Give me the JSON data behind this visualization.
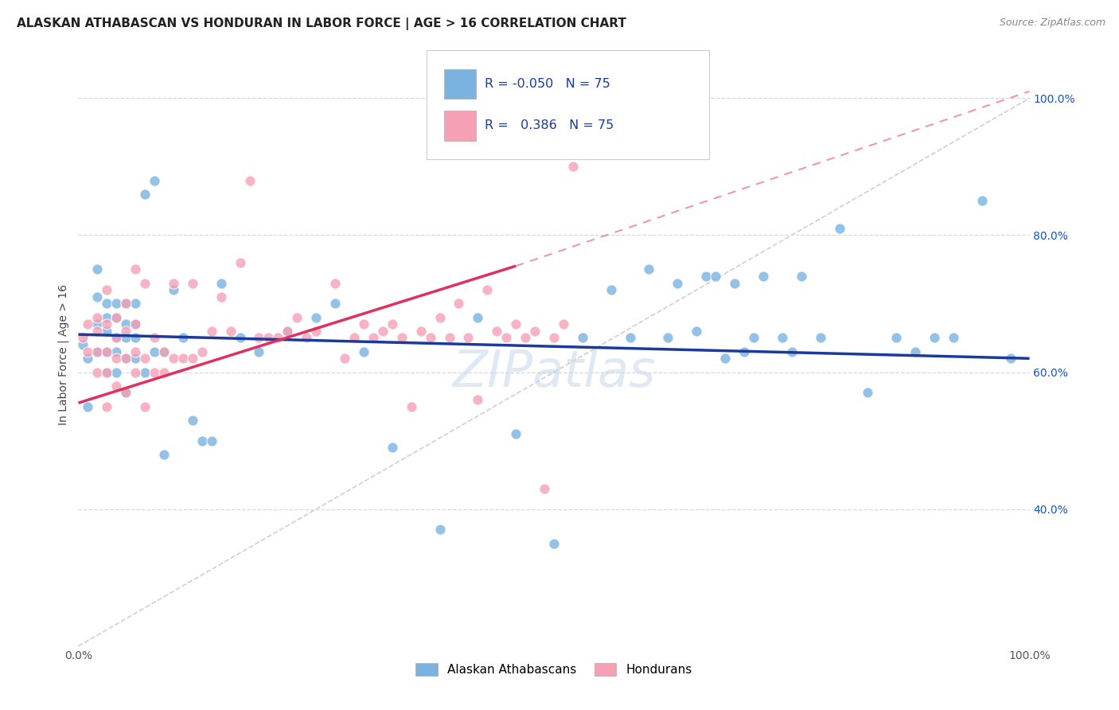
{
  "title": "ALASKAN ATHABASCAN VS HONDURAN IN LABOR FORCE | AGE > 16 CORRELATION CHART",
  "source": "Source: ZipAtlas.com",
  "ylabel": "In Labor Force | Age > 16",
  "xlim": [
    0.0,
    1.0
  ],
  "ylim": [
    0.2,
    1.05
  ],
  "blue_color": "#7ab3e0",
  "pink_color": "#f5a0b5",
  "blue_line_color": "#1a3a9c",
  "pink_line_color": "#e03060",
  "diag_line_color": "#d0d0d0",
  "grid_color": "#d8d8d8",
  "watermark_color": "#c5d8ec",
  "legend_r_blue": "-0.050",
  "legend_r_pink": "0.386",
  "legend_n": "75",
  "blue_x": [
    0.005,
    0.01,
    0.01,
    0.02,
    0.02,
    0.02,
    0.02,
    0.03,
    0.03,
    0.03,
    0.03,
    0.03,
    0.04,
    0.04,
    0.04,
    0.04,
    0.04,
    0.05,
    0.05,
    0.05,
    0.05,
    0.05,
    0.06,
    0.06,
    0.06,
    0.06,
    0.07,
    0.07,
    0.08,
    0.08,
    0.09,
    0.09,
    0.1,
    0.11,
    0.12,
    0.13,
    0.14,
    0.15,
    0.17,
    0.19,
    0.22,
    0.25,
    0.27,
    0.3,
    0.33,
    0.38,
    0.42,
    0.46,
    0.5,
    0.53,
    0.56,
    0.58,
    0.6,
    0.62,
    0.63,
    0.65,
    0.66,
    0.67,
    0.68,
    0.69,
    0.7,
    0.71,
    0.72,
    0.74,
    0.75,
    0.76,
    0.78,
    0.8,
    0.83,
    0.86,
    0.88,
    0.9,
    0.92,
    0.95,
    0.98
  ],
  "blue_y": [
    0.64,
    0.55,
    0.62,
    0.63,
    0.67,
    0.71,
    0.75,
    0.6,
    0.63,
    0.66,
    0.68,
    0.7,
    0.6,
    0.63,
    0.65,
    0.68,
    0.7,
    0.57,
    0.62,
    0.65,
    0.67,
    0.7,
    0.62,
    0.65,
    0.67,
    0.7,
    0.6,
    0.86,
    0.63,
    0.88,
    0.48,
    0.63,
    0.72,
    0.65,
    0.53,
    0.5,
    0.5,
    0.73,
    0.65,
    0.63,
    0.66,
    0.68,
    0.7,
    0.63,
    0.49,
    0.37,
    0.68,
    0.51,
    0.35,
    0.65,
    0.72,
    0.65,
    0.75,
    0.65,
    0.73,
    0.66,
    0.74,
    0.74,
    0.62,
    0.73,
    0.63,
    0.65,
    0.74,
    0.65,
    0.63,
    0.74,
    0.65,
    0.81,
    0.57,
    0.65,
    0.63,
    0.65,
    0.65,
    0.85,
    0.62
  ],
  "pink_x": [
    0.005,
    0.01,
    0.01,
    0.02,
    0.02,
    0.02,
    0.02,
    0.03,
    0.03,
    0.03,
    0.03,
    0.03,
    0.04,
    0.04,
    0.04,
    0.04,
    0.05,
    0.05,
    0.05,
    0.05,
    0.06,
    0.06,
    0.06,
    0.06,
    0.07,
    0.07,
    0.07,
    0.08,
    0.08,
    0.09,
    0.09,
    0.1,
    0.1,
    0.11,
    0.12,
    0.12,
    0.13,
    0.14,
    0.15,
    0.16,
    0.17,
    0.18,
    0.19,
    0.2,
    0.21,
    0.22,
    0.23,
    0.24,
    0.25,
    0.27,
    0.28,
    0.29,
    0.3,
    0.31,
    0.32,
    0.33,
    0.34,
    0.35,
    0.36,
    0.37,
    0.38,
    0.39,
    0.4,
    0.41,
    0.42,
    0.43,
    0.44,
    0.45,
    0.46,
    0.47,
    0.48,
    0.49,
    0.5,
    0.51,
    0.52
  ],
  "pink_y": [
    0.65,
    0.63,
    0.67,
    0.6,
    0.63,
    0.66,
    0.68,
    0.55,
    0.6,
    0.63,
    0.67,
    0.72,
    0.58,
    0.62,
    0.65,
    0.68,
    0.57,
    0.62,
    0.66,
    0.7,
    0.6,
    0.63,
    0.67,
    0.75,
    0.55,
    0.62,
    0.73,
    0.6,
    0.65,
    0.6,
    0.63,
    0.62,
    0.73,
    0.62,
    0.62,
    0.73,
    0.63,
    0.66,
    0.71,
    0.66,
    0.76,
    0.88,
    0.65,
    0.65,
    0.65,
    0.66,
    0.68,
    0.65,
    0.66,
    0.73,
    0.62,
    0.65,
    0.67,
    0.65,
    0.66,
    0.67,
    0.65,
    0.55,
    0.66,
    0.65,
    0.68,
    0.65,
    0.7,
    0.65,
    0.56,
    0.72,
    0.66,
    0.65,
    0.67,
    0.65,
    0.66,
    0.43,
    0.65,
    0.67,
    0.9
  ],
  "blue_trend_x0": 0.0,
  "blue_trend_y0": 0.655,
  "blue_trend_x1": 1.0,
  "blue_trend_y1": 0.62,
  "pink_trend_x0": 0.0,
  "pink_trend_y0": 0.555,
  "pink_trend_x1": 0.46,
  "pink_trend_y1": 0.755,
  "pink_trend_dash_x0": 0.46,
  "pink_trend_dash_y0": 0.755,
  "pink_trend_dash_x1": 1.0,
  "pink_trend_dash_y1": 1.01
}
